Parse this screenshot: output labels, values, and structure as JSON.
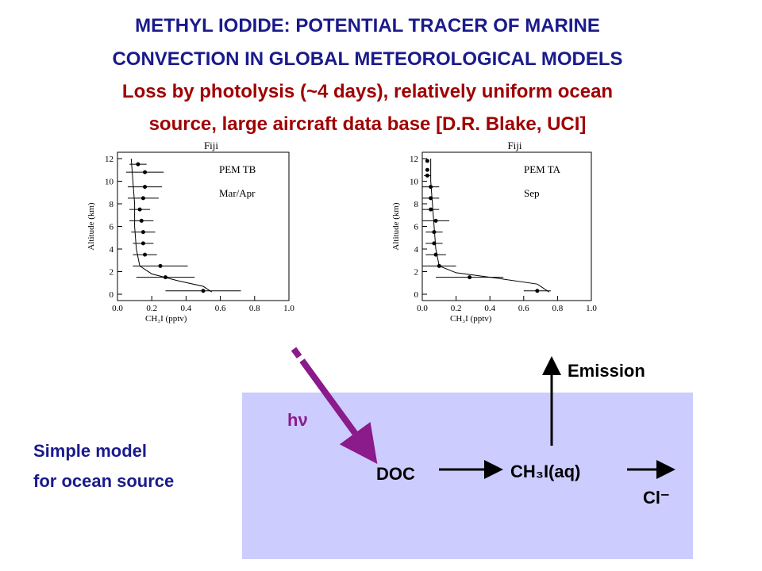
{
  "title": [
    "METHYL IODIDE: POTENTIAL TRACER OF MARINE",
    "CONVECTION IN GLOBAL METEOROLOGICAL  MODELS"
  ],
  "subtitle": [
    "Loss by photolysis (~4 days), relatively uniform ocean",
    "source, large aircraft data base [D.R. Blake, UCI]"
  ],
  "chart_data": [
    {
      "type": "scatter",
      "title": "Fiji",
      "annotations": [
        "PEM TB",
        "Mar/Apr"
      ],
      "x_label": "CH₃I (pptv)",
      "y_label": "Altitude (km)",
      "xlim": [
        0,
        1
      ],
      "ylim": [
        0,
        12
      ],
      "xticks": [
        {
          "value": 0,
          "label": "0.0"
        },
        {
          "value": 0.2,
          "label": "0.2"
        },
        {
          "value": 0.4,
          "label": "0.4"
        },
        {
          "value": 0.6,
          "label": "0.6"
        },
        {
          "value": 0.8,
          "label": "0.8"
        },
        {
          "value": 1,
          "label": "1.0"
        }
      ],
      "yticks": [
        0,
        2,
        4,
        6,
        8,
        10,
        12
      ],
      "points": {
        "x": [
          0.12,
          0.16,
          0.16,
          0.15,
          0.13,
          0.14,
          0.15,
          0.15,
          0.16,
          0.25,
          0.28,
          0.5
        ],
        "y": [
          11.5,
          10.8,
          9.5,
          8.5,
          7.5,
          6.5,
          5.5,
          4.5,
          3.5,
          2.5,
          1.5,
          0.3
        ],
        "xerr": [
          0.05,
          0.11,
          0.1,
          0.09,
          0.06,
          0.07,
          0.07,
          0.06,
          0.07,
          0.16,
          0.17,
          0.22
        ]
      },
      "model": {
        "x": [
          0.08,
          0.09,
          0.1,
          0.1,
          0.11,
          0.13,
          0.2,
          0.35,
          0.5,
          0.55
        ],
        "y": [
          12,
          10,
          8,
          6,
          4,
          2.5,
          1.8,
          1.2,
          0.7,
          0.2
        ]
      }
    },
    {
      "type": "scatter",
      "title": "Fiji",
      "annotations": [
        "PEM TA",
        "Sep"
      ],
      "x_label": "CH₃I (pptv)",
      "y_label": "Altitude (km)",
      "xlim": [
        0,
        1
      ],
      "ylim": [
        0,
        12
      ],
      "xticks": [
        {
          "value": 0,
          "label": "0.0"
        },
        {
          "value": 0.2,
          "label": "0.2"
        },
        {
          "value": 0.4,
          "label": "0.4"
        },
        {
          "value": 0.6,
          "label": "0.6"
        },
        {
          "value": 0.8,
          "label": "0.8"
        },
        {
          "value": 1,
          "label": "1.0"
        }
      ],
      "yticks": [
        0,
        2,
        4,
        6,
        8,
        10,
        12
      ],
      "points": {
        "x": [
          0.03,
          0.03,
          0.03,
          0.05,
          0.05,
          0.05,
          0.08,
          0.07,
          0.07,
          0.08,
          0.1,
          0.28,
          0.68
        ],
        "y": [
          11.8,
          11,
          10.5,
          9.5,
          8.5,
          7.5,
          6.5,
          5.5,
          4.5,
          3.5,
          2.5,
          1.5,
          0.3
        ],
        "xerr": [
          0.01,
          0.01,
          0.02,
          0.05,
          0.05,
          0.05,
          0.08,
          0.05,
          0.05,
          0.06,
          0.1,
          0.2,
          0.08
        ]
      },
      "model": {
        "x": [
          0.05,
          0.05,
          0.06,
          0.07,
          0.08,
          0.1,
          0.2,
          0.45,
          0.68,
          0.75
        ],
        "y": [
          12,
          10,
          8,
          6,
          4,
          2.5,
          1.9,
          1.4,
          0.9,
          0.2
        ]
      }
    }
  ],
  "diagram": {
    "emission": "Emission",
    "photon": "hν",
    "model_label": [
      "Simple model",
      "for ocean source"
    ],
    "doc": "DOC",
    "ch3i": "CH₃I(aq)",
    "chloride": "Cl⁻"
  }
}
